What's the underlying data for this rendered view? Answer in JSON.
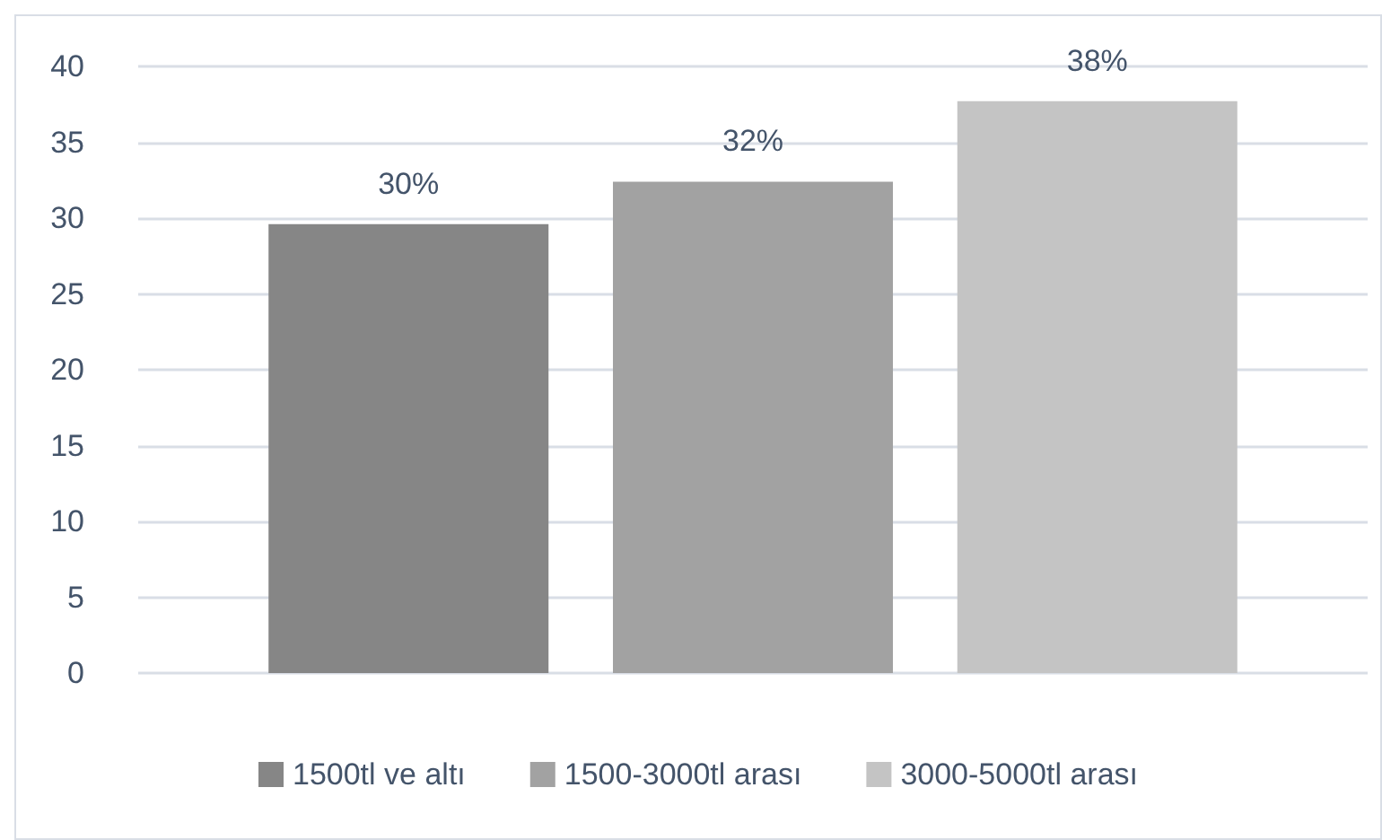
{
  "chart_data": {
    "type": "bar",
    "categories": [
      null
    ],
    "series": [
      {
        "name": "1500tl ve altı",
        "color": "#868686",
        "values": [
          29.6
        ],
        "value_labels": [
          "30%"
        ]
      },
      {
        "name": "1500-3000tl arası",
        "color": "#a2a2a2",
        "values": [
          32.4
        ],
        "value_labels": [
          "32%"
        ]
      },
      {
        "name": "3000-5000tl arası",
        "color": "#c4c4c4",
        "values": [
          37.7
        ],
        "value_labels": [
          "38%"
        ]
      }
    ],
    "ylim": [
      0,
      40
    ],
    "yticks": [
      0,
      5,
      10,
      15,
      20,
      25,
      30,
      35,
      40
    ],
    "grid": "y",
    "legend": "bottom"
  }
}
